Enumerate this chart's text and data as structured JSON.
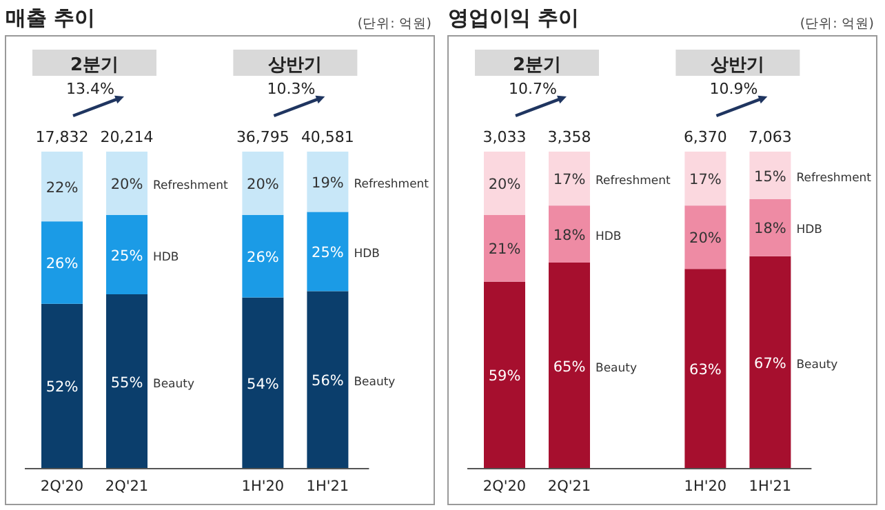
{
  "chart_data": [
    {
      "type": "bar",
      "title": "매출 추이",
      "subtitle": "(단위: 억원)",
      "stacked": true,
      "categories": [
        "2Q'20",
        "2Q'21",
        "1H'20",
        "1H'21"
      ],
      "series": [
        {
          "name": "Beauty",
          "color": "#0b3e6c",
          "values": [
            52,
            55,
            54,
            56
          ],
          "value_labels": [
            "52%",
            "55%",
            "54%",
            "56%"
          ]
        },
        {
          "name": "HDB",
          "color": "#1b9be6",
          "values": [
            26,
            25,
            26,
            25
          ],
          "value_labels": [
            "26%",
            "25%",
            "26%",
            "25%"
          ]
        },
        {
          "name": "Refreshment",
          "color": "#c8e7f8",
          "values": [
            22,
            20,
            20,
            19
          ],
          "value_labels": [
            "22%",
            "20%",
            "20%",
            "19%"
          ]
        }
      ],
      "annotations": [
        "2분기",
        "상반기",
        "13.4%",
        "10.3%",
        "17,832",
        "20,214",
        "36,795",
        "40,581"
      ]
    },
    {
      "type": "bar",
      "title": "영업이익 추이",
      "subtitle": "(단위: 억원)",
      "stacked": true,
      "categories": [
        "2Q'20",
        "2Q'21",
        "1H'20",
        "1H'21"
      ],
      "series": [
        {
          "name": "Beauty",
          "color": "#a60f2e",
          "values": [
            59,
            65,
            63,
            67
          ],
          "value_labels": [
            "59%",
            "65%",
            "63%",
            "67%"
          ]
        },
        {
          "name": "HDB",
          "color": "#ee8ba4",
          "values": [
            21,
            18,
            20,
            18
          ],
          "value_labels": [
            "21%",
            "18%",
            "20%",
            "18%"
          ]
        },
        {
          "name": "Refreshment",
          "color": "#fbd8df",
          "values": [
            20,
            17,
            17,
            15
          ],
          "value_labels": [
            "20%",
            "17%",
            "17%",
            "15%"
          ]
        }
      ],
      "annotations": [
        "2분기",
        "상반기",
        "10.7%",
        "10.9%",
        "3,033",
        "3,358",
        "6,370",
        "7,063"
      ]
    }
  ]
}
